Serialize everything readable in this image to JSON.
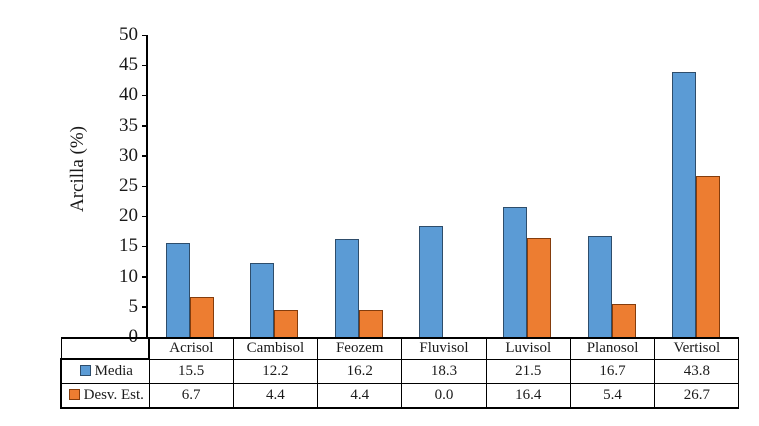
{
  "chart_data": {
    "type": "bar",
    "title": "",
    "xlabel": "",
    "ylabel": "Arcilla (%)",
    "categories": [
      "Acrisol",
      "Cambisol",
      "Feozem",
      "Fluvisol",
      "Luvisol",
      "Planosol",
      "Vertisol"
    ],
    "series": [
      {
        "name": "Media",
        "values": [
          15.5,
          12.2,
          16.2,
          18.3,
          21.5,
          16.7,
          43.8
        ],
        "fill": "#5B9BD5",
        "border": "#2E4D6B"
      },
      {
        "name": "Desv. Est.",
        "values": [
          6.7,
          4.4,
          4.4,
          0.0,
          16.4,
          5.4,
          26.7
        ],
        "fill": "#ED7D31",
        "border": "#843C0C"
      }
    ],
    "ylim": [
      0,
      50
    ],
    "ytick_step": 5,
    "ytick_labels": [
      "0",
      "5",
      "10",
      "15",
      "20",
      "25",
      "30",
      "35",
      "40",
      "45",
      "50"
    ],
    "grid": false,
    "legend_position": "data-table-left",
    "value_decimals": 1,
    "axis_color": "#000000",
    "background_color": "#FFFFFF"
  }
}
